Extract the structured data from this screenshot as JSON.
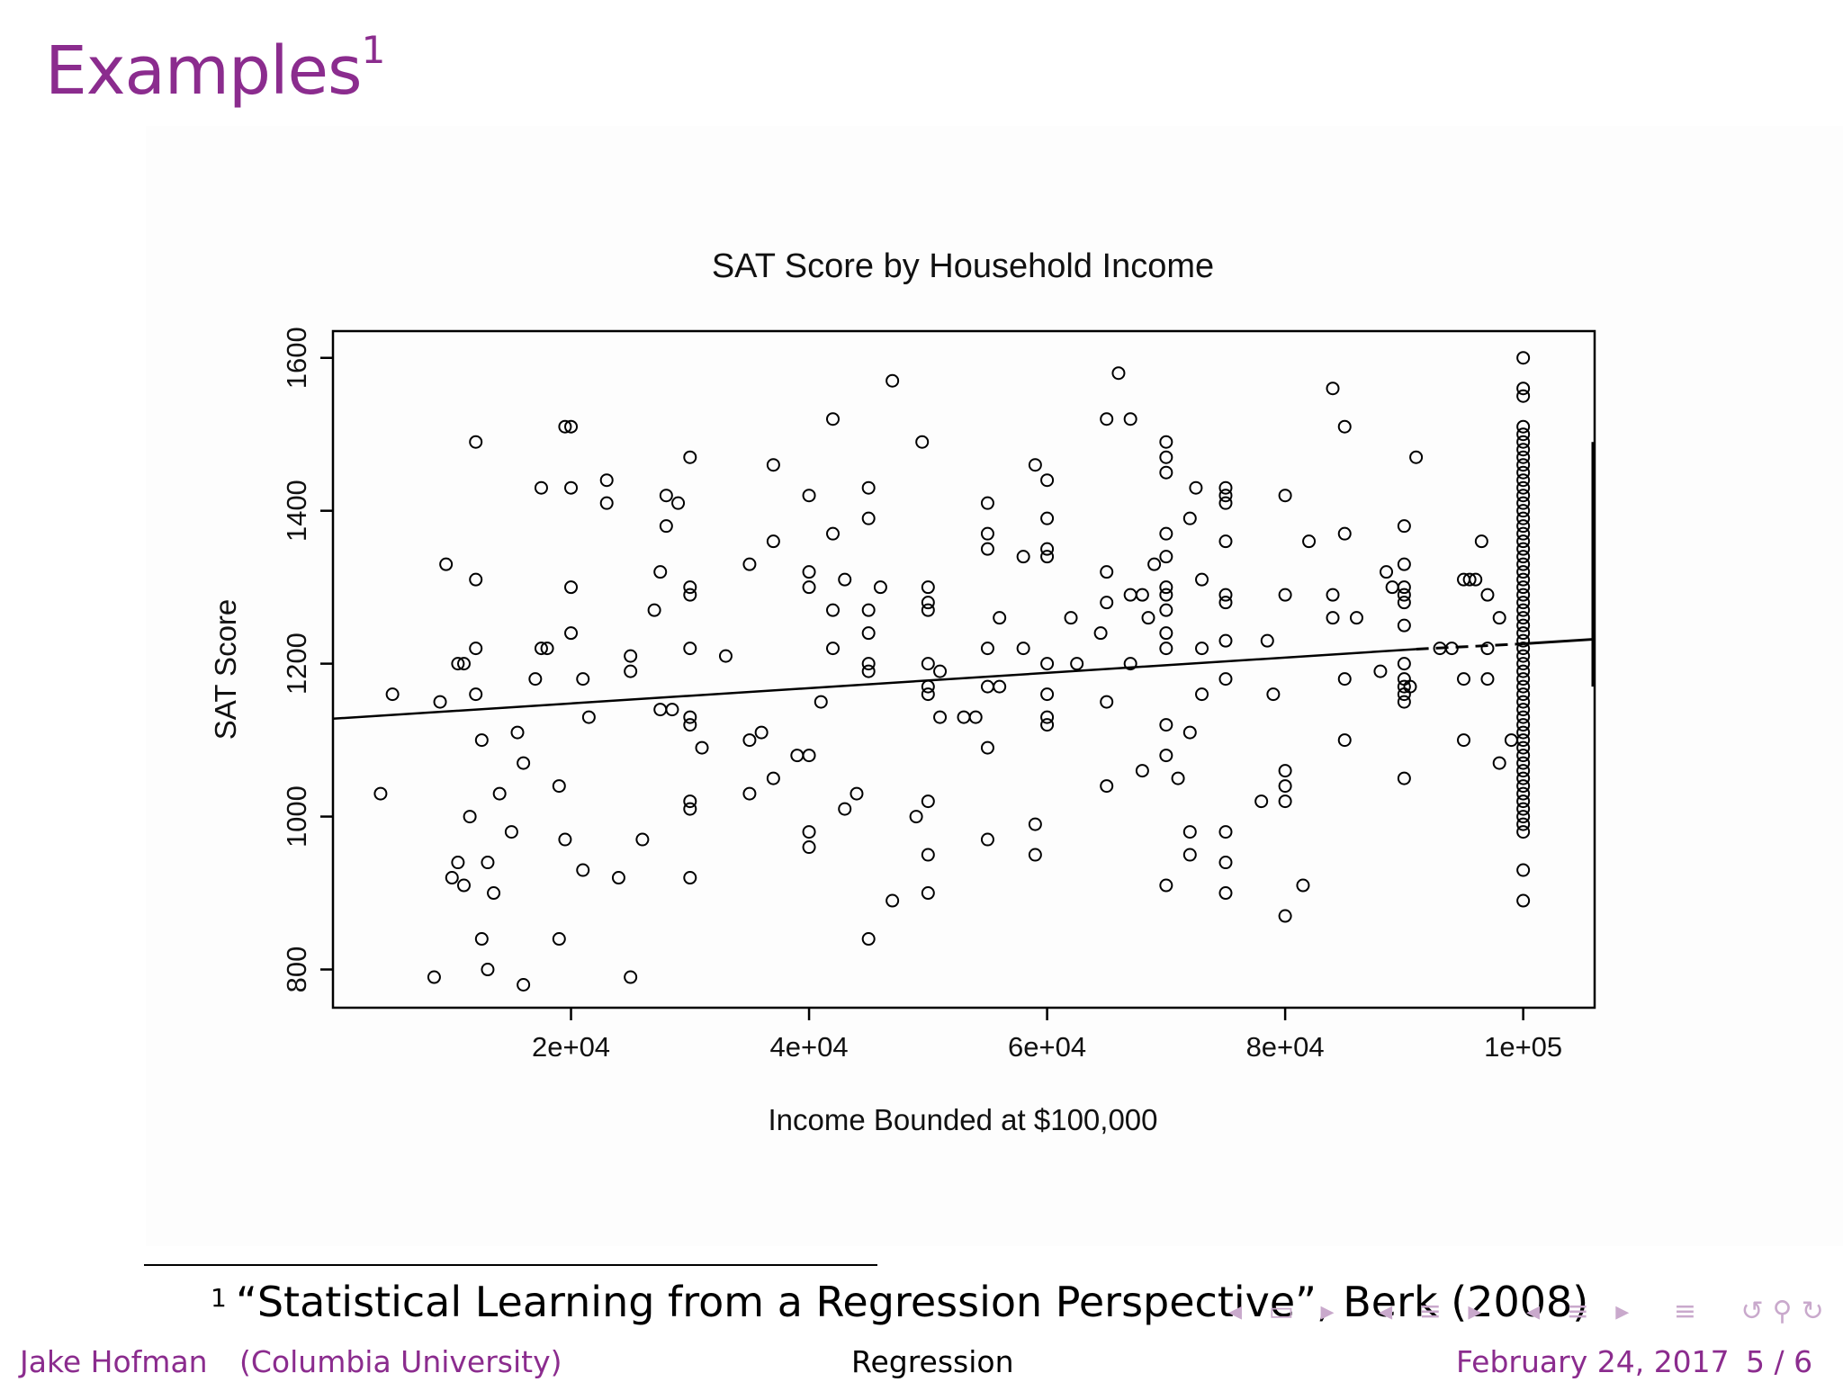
{
  "slide": {
    "title": "Examples",
    "title_footnote_mark": "1"
  },
  "footnote": {
    "mark": "1",
    "text": "“Statistical Learning from a Regression Perspective”, Berk (2008)"
  },
  "footer": {
    "author": "Jake Hofman",
    "affiliation": "(Columbia University)",
    "topic": "Regression",
    "date": "February 24, 2017",
    "page": "5 / 6"
  },
  "nav": {
    "icons": [
      "nav-frame-icon",
      "nav-section-icon",
      "nav-subsection-icon",
      "nav-toc-icon",
      "nav-search-icon"
    ]
  },
  "chart_data": {
    "type": "scatter",
    "title": "SAT Score by Household Income",
    "xlabel": "Income Bounded at $100,000",
    "ylabel": "SAT Score",
    "xlim": [
      0,
      106000
    ],
    "ylim": [
      750,
      1635
    ],
    "xticks": [
      20000,
      40000,
      60000,
      80000,
      100000
    ],
    "xtick_labels": [
      "2e+04",
      "4e+04",
      "6e+04",
      "8e+04",
      "1e+05"
    ],
    "yticks": [
      800,
      1000,
      1200,
      1400,
      1600
    ],
    "ytick_labels": [
      "800",
      "1000",
      "1200",
      "1400",
      "1600"
    ],
    "grid": false,
    "legend": false,
    "points": [
      [
        4000,
        1030
      ],
      [
        5000,
        1160
      ],
      [
        8500,
        790
      ],
      [
        9000,
        1150
      ],
      [
        9500,
        1330
      ],
      [
        10000,
        920
      ],
      [
        10500,
        1200
      ],
      [
        10500,
        940
      ],
      [
        11000,
        910
      ],
      [
        11000,
        1200
      ],
      [
        11500,
        1000
      ],
      [
        12000,
        1490
      ],
      [
        12000,
        1310
      ],
      [
        12000,
        1220
      ],
      [
        12000,
        1160
      ],
      [
        12500,
        1100
      ],
      [
        12500,
        840
      ],
      [
        13000,
        940
      ],
      [
        13000,
        800
      ],
      [
        13500,
        900
      ],
      [
        14000,
        1030
      ],
      [
        15000,
        980
      ],
      [
        15500,
        1110
      ],
      [
        16000,
        780
      ],
      [
        16000,
        1070
      ],
      [
        17000,
        1180
      ],
      [
        17500,
        1220
      ],
      [
        17500,
        1430
      ],
      [
        18000,
        1220
      ],
      [
        19000,
        840
      ],
      [
        19000,
        1040
      ],
      [
        19500,
        970
      ],
      [
        19500,
        1510
      ],
      [
        20000,
        1510
      ],
      [
        20000,
        1430
      ],
      [
        20000,
        1300
      ],
      [
        20000,
        1240
      ],
      [
        21000,
        1180
      ],
      [
        21000,
        930
      ],
      [
        21500,
        1130
      ],
      [
        23000,
        1410
      ],
      [
        23000,
        1440
      ],
      [
        24000,
        920
      ],
      [
        25000,
        1210
      ],
      [
        25000,
        1190
      ],
      [
        25000,
        790
      ],
      [
        26000,
        970
      ],
      [
        27000,
        1270
      ],
      [
        27500,
        1320
      ],
      [
        27500,
        1140
      ],
      [
        28000,
        1420
      ],
      [
        28000,
        1380
      ],
      [
        28500,
        1140
      ],
      [
        29000,
        1410
      ],
      [
        30000,
        1470
      ],
      [
        30000,
        1300
      ],
      [
        30000,
        1290
      ],
      [
        30000,
        1220
      ],
      [
        30000,
        1130
      ],
      [
        30000,
        1120
      ],
      [
        30000,
        1020
      ],
      [
        30000,
        1010
      ],
      [
        30000,
        920
      ],
      [
        31000,
        1090
      ],
      [
        33000,
        1210
      ],
      [
        35000,
        1330
      ],
      [
        35000,
        1100
      ],
      [
        35000,
        1030
      ],
      [
        36000,
        1110
      ],
      [
        37000,
        1460
      ],
      [
        37000,
        1360
      ],
      [
        37000,
        1050
      ],
      [
        39000,
        1080
      ],
      [
        40000,
        1420
      ],
      [
        40000,
        1320
      ],
      [
        40000,
        1300
      ],
      [
        40000,
        1080
      ],
      [
        40000,
        980
      ],
      [
        40000,
        960
      ],
      [
        41000,
        1150
      ],
      [
        42000,
        1520
      ],
      [
        42000,
        1370
      ],
      [
        42000,
        1270
      ],
      [
        42000,
        1220
      ],
      [
        43000,
        1310
      ],
      [
        43000,
        1010
      ],
      [
        44000,
        1030
      ],
      [
        45000,
        1430
      ],
      [
        45000,
        1390
      ],
      [
        45000,
        1270
      ],
      [
        45000,
        1240
      ],
      [
        45000,
        1200
      ],
      [
        45000,
        1190
      ],
      [
        45000,
        840
      ],
      [
        46000,
        1300
      ],
      [
        47000,
        1570
      ],
      [
        47000,
        890
      ],
      [
        49000,
        1000
      ],
      [
        49500,
        1490
      ],
      [
        50000,
        1300
      ],
      [
        50000,
        1280
      ],
      [
        50000,
        1270
      ],
      [
        50000,
        1200
      ],
      [
        50000,
        1170
      ],
      [
        50000,
        1160
      ],
      [
        50000,
        1020
      ],
      [
        50000,
        950
      ],
      [
        50000,
        900
      ],
      [
        51000,
        1190
      ],
      [
        51000,
        1130
      ],
      [
        53000,
        1130
      ],
      [
        54000,
        1130
      ],
      [
        55000,
        1410
      ],
      [
        55000,
        1370
      ],
      [
        55000,
        1350
      ],
      [
        55000,
        1220
      ],
      [
        55000,
        1170
      ],
      [
        55000,
        1090
      ],
      [
        55000,
        970
      ],
      [
        56000,
        1260
      ],
      [
        56000,
        1170
      ],
      [
        58000,
        1340
      ],
      [
        58000,
        1220
      ],
      [
        59000,
        1460
      ],
      [
        59000,
        990
      ],
      [
        59000,
        950
      ],
      [
        60000,
        1440
      ],
      [
        60000,
        1390
      ],
      [
        60000,
        1350
      ],
      [
        60000,
        1340
      ],
      [
        60000,
        1200
      ],
      [
        60000,
        1160
      ],
      [
        60000,
        1130
      ],
      [
        60000,
        1120
      ],
      [
        62000,
        1260
      ],
      [
        62500,
        1200
      ],
      [
        64500,
        1240
      ],
      [
        65000,
        1520
      ],
      [
        65000,
        1320
      ],
      [
        65000,
        1280
      ],
      [
        65000,
        1150
      ],
      [
        65000,
        1040
      ],
      [
        66000,
        1580
      ],
      [
        67000,
        1520
      ],
      [
        67000,
        1290
      ],
      [
        67000,
        1200
      ],
      [
        68000,
        1290
      ],
      [
        68000,
        1060
      ],
      [
        68500,
        1260
      ],
      [
        69000,
        1330
      ],
      [
        70000,
        1490
      ],
      [
        70000,
        1470
      ],
      [
        70000,
        1450
      ],
      [
        70000,
        1370
      ],
      [
        70000,
        1340
      ],
      [
        70000,
        1300
      ],
      [
        70000,
        1290
      ],
      [
        70000,
        1270
      ],
      [
        70000,
        1240
      ],
      [
        70000,
        1220
      ],
      [
        70000,
        1120
      ],
      [
        70000,
        1080
      ],
      [
        70000,
        910
      ],
      [
        71000,
        1050
      ],
      [
        72000,
        1390
      ],
      [
        72000,
        1110
      ],
      [
        72000,
        980
      ],
      [
        72000,
        950
      ],
      [
        72500,
        1430
      ],
      [
        73000,
        1310
      ],
      [
        73000,
        1220
      ],
      [
        73000,
        1160
      ],
      [
        75000,
        1430
      ],
      [
        75000,
        1420
      ],
      [
        75000,
        1410
      ],
      [
        75000,
        1360
      ],
      [
        75000,
        1290
      ],
      [
        75000,
        1280
      ],
      [
        75000,
        1230
      ],
      [
        75000,
        1180
      ],
      [
        75000,
        980
      ],
      [
        75000,
        940
      ],
      [
        75000,
        900
      ],
      [
        78000,
        1020
      ],
      [
        78500,
        1230
      ],
      [
        79000,
        1160
      ],
      [
        80000,
        1420
      ],
      [
        80000,
        1290
      ],
      [
        80000,
        1060
      ],
      [
        80000,
        1040
      ],
      [
        80000,
        1020
      ],
      [
        80000,
        870
      ],
      [
        81500,
        910
      ],
      [
        82000,
        1360
      ],
      [
        84000,
        1560
      ],
      [
        84000,
        1290
      ],
      [
        84000,
        1260
      ],
      [
        85000,
        1510
      ],
      [
        85000,
        1370
      ],
      [
        85000,
        1180
      ],
      [
        85000,
        1100
      ],
      [
        86000,
        1260
      ],
      [
        88000,
        1190
      ],
      [
        88500,
        1320
      ],
      [
        89000,
        1300
      ],
      [
        90000,
        1380
      ],
      [
        90000,
        1330
      ],
      [
        90000,
        1300
      ],
      [
        90000,
        1290
      ],
      [
        90000,
        1280
      ],
      [
        90000,
        1250
      ],
      [
        90000,
        1200
      ],
      [
        90000,
        1180
      ],
      [
        90000,
        1170
      ],
      [
        90000,
        1160
      ],
      [
        90000,
        1150
      ],
      [
        90000,
        1050
      ],
      [
        90500,
        1170
      ],
      [
        91000,
        1470
      ],
      [
        93000,
        1220
      ],
      [
        94000,
        1220
      ],
      [
        95000,
        1310
      ],
      [
        95000,
        1180
      ],
      [
        95000,
        1100
      ],
      [
        95500,
        1310
      ],
      [
        96000,
        1310
      ],
      [
        96500,
        1360
      ],
      [
        97000,
        1290
      ],
      [
        97000,
        1220
      ],
      [
        97000,
        1180
      ],
      [
        98000,
        1260
      ],
      [
        98000,
        1070
      ],
      [
        99000,
        1100
      ],
      [
        100000,
        1600
      ],
      [
        100000,
        1560
      ],
      [
        100000,
        1550
      ],
      [
        100000,
        1510
      ],
      [
        100000,
        1500
      ],
      [
        100000,
        1490
      ],
      [
        100000,
        1480
      ],
      [
        100000,
        1470
      ],
      [
        100000,
        1460
      ],
      [
        100000,
        1450
      ],
      [
        100000,
        1440
      ],
      [
        100000,
        1430
      ],
      [
        100000,
        1420
      ],
      [
        100000,
        1410
      ],
      [
        100000,
        1400
      ],
      [
        100000,
        1390
      ],
      [
        100000,
        1380
      ],
      [
        100000,
        1370
      ],
      [
        100000,
        1360
      ],
      [
        100000,
        1350
      ],
      [
        100000,
        1340
      ],
      [
        100000,
        1330
      ],
      [
        100000,
        1320
      ],
      [
        100000,
        1310
      ],
      [
        100000,
        1300
      ],
      [
        100000,
        1290
      ],
      [
        100000,
        1280
      ],
      [
        100000,
        1270
      ],
      [
        100000,
        1260
      ],
      [
        100000,
        1250
      ],
      [
        100000,
        1240
      ],
      [
        100000,
        1230
      ],
      [
        100000,
        1220
      ],
      [
        100000,
        1210
      ],
      [
        100000,
        1200
      ],
      [
        100000,
        1190
      ],
      [
        100000,
        1180
      ],
      [
        100000,
        1170
      ],
      [
        100000,
        1160
      ],
      [
        100000,
        1150
      ],
      [
        100000,
        1140
      ],
      [
        100000,
        1130
      ],
      [
        100000,
        1120
      ],
      [
        100000,
        1110
      ],
      [
        100000,
        1100
      ],
      [
        100000,
        1090
      ],
      [
        100000,
        1080
      ],
      [
        100000,
        1070
      ],
      [
        100000,
        1060
      ],
      [
        100000,
        1050
      ],
      [
        100000,
        1040
      ],
      [
        100000,
        1030
      ],
      [
        100000,
        1020
      ],
      [
        100000,
        1010
      ],
      [
        100000,
        1000
      ],
      [
        100000,
        990
      ],
      [
        100000,
        980
      ],
      [
        100000,
        930
      ],
      [
        100000,
        890
      ]
    ],
    "fit_line": {
      "description_from_image": "fitted regression line",
      "segments": [
        [
          0,
          1128
        ],
        [
          91000,
          1219
        ]
      ],
      "dashed_segment": [
        [
          91000,
          1219
        ],
        [
          100000,
          1226
        ]
      ],
      "tail_segment": [
        [
          100000,
          1226
        ],
        [
          106000,
          1232
        ]
      ]
    }
  }
}
